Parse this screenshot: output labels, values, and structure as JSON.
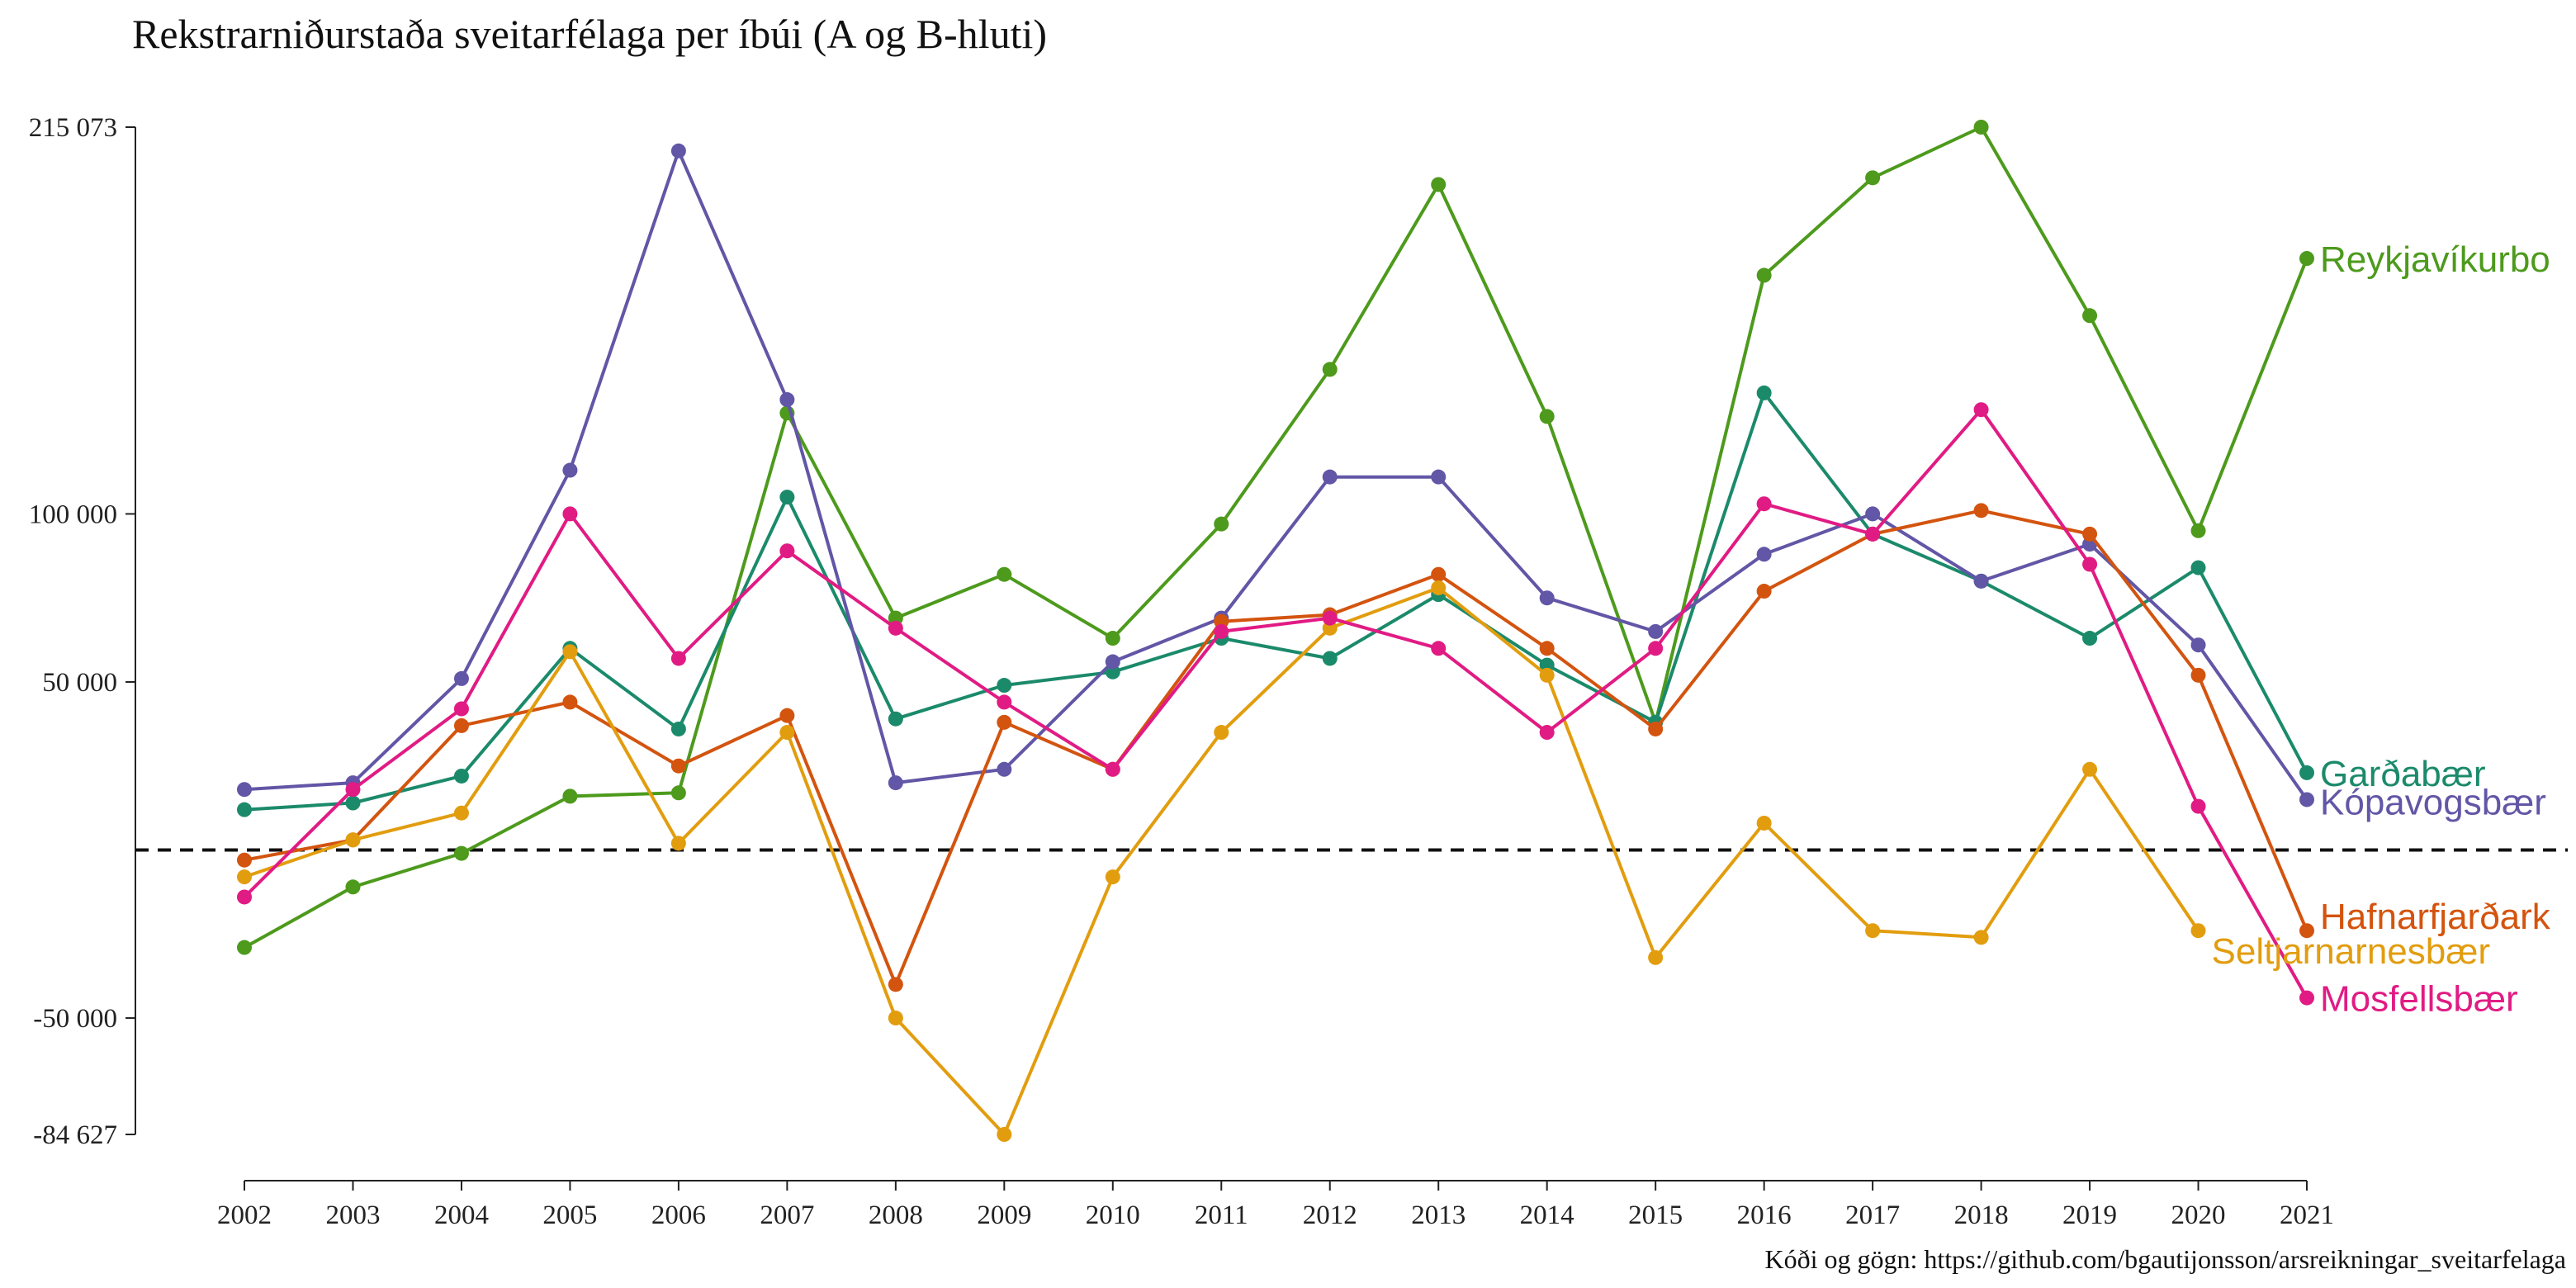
{
  "chart_data": {
    "type": "line",
    "title": "Rekstrarniðurstaða sveitarfélaga per íbúi (A og B-hluti)",
    "caption": "Kóði og gögn: https://github.com/bgautijonsson/arsreikningar_sveitarfelaga",
    "xlabel": "",
    "ylabel": "",
    "ylim": [
      -84627,
      215073
    ],
    "y_ticks": [
      {
        "value": 215073,
        "label": "215 073"
      },
      {
        "value": 100000,
        "label": "100 000"
      },
      {
        "value": 50000,
        "label": "50 000"
      },
      {
        "value": -50000,
        "label": "-50 000"
      },
      {
        "value": -84627,
        "label": "-84 627"
      }
    ],
    "reference_line": {
      "value": 0,
      "style": "dashed"
    },
    "grid": false,
    "legend": "direct labels at right end of lines",
    "x": [
      2002,
      2003,
      2004,
      2005,
      2006,
      2007,
      2008,
      2009,
      2010,
      2011,
      2012,
      2013,
      2014,
      2015,
      2016,
      2017,
      2018,
      2019,
      2020,
      2021
    ],
    "series": [
      {
        "name": "Reykjavíkurborg",
        "label": "Reykjavíkurbo",
        "color": "#4d9a1c",
        "values": [
          -29000,
          -11000,
          -1000,
          16000,
          17000,
          130000,
          69000,
          82000,
          63000,
          97000,
          143000,
          198000,
          129000,
          38000,
          171000,
          200000,
          215073,
          159000,
          95000,
          176000
        ]
      },
      {
        "name": "Garðabær",
        "label": "Garðabær",
        "color": "#1b8a6b",
        "values": [
          12000,
          14000,
          22000,
          60000,
          36000,
          105000,
          39000,
          49000,
          53000,
          63000,
          57000,
          76000,
          55000,
          38000,
          136000,
          94000,
          80000,
          63000,
          84000,
          23000
        ]
      },
      {
        "name": "Kópavogsbær",
        "label": "Kópavogsbær",
        "color": "#6256a6",
        "values": [
          18000,
          20000,
          51000,
          113000,
          208000,
          134000,
          20000,
          24000,
          56000,
          69000,
          111000,
          111000,
          75000,
          65000,
          88000,
          100000,
          80000,
          91000,
          61000,
          15000
        ]
      },
      {
        "name": "Hafnarfjarðarkaupstaður",
        "label": "Hafnarfjarðark",
        "color": "#d3540f",
        "values": [
          -3000,
          3000,
          37000,
          44000,
          25000,
          40000,
          -40000,
          38000,
          24000,
          68000,
          70000,
          82000,
          60000,
          36000,
          77000,
          94000,
          101000,
          94000,
          52000,
          -24000
        ]
      },
      {
        "name": "Seltjarnarnesbær",
        "label": "Seltjarnarnesbær",
        "color": "#e29d0f",
        "values": [
          -8000,
          3000,
          11000,
          59000,
          2000,
          35000,
          -50000,
          -84627,
          -8000,
          35000,
          66000,
          78000,
          52000,
          -32000,
          8000,
          -24000,
          -26000,
          24000,
          -24000,
          null
        ]
      },
      {
        "name": "Mosfellsbær",
        "label": "Mosfellsbær",
        "color": "#e11b84",
        "values": [
          -14000,
          18000,
          42000,
          100000,
          57000,
          89000,
          66000,
          44000,
          24000,
          65000,
          69000,
          60000,
          35000,
          60000,
          103000,
          94000,
          131000,
          85000,
          13000,
          -44000
        ]
      }
    ]
  }
}
